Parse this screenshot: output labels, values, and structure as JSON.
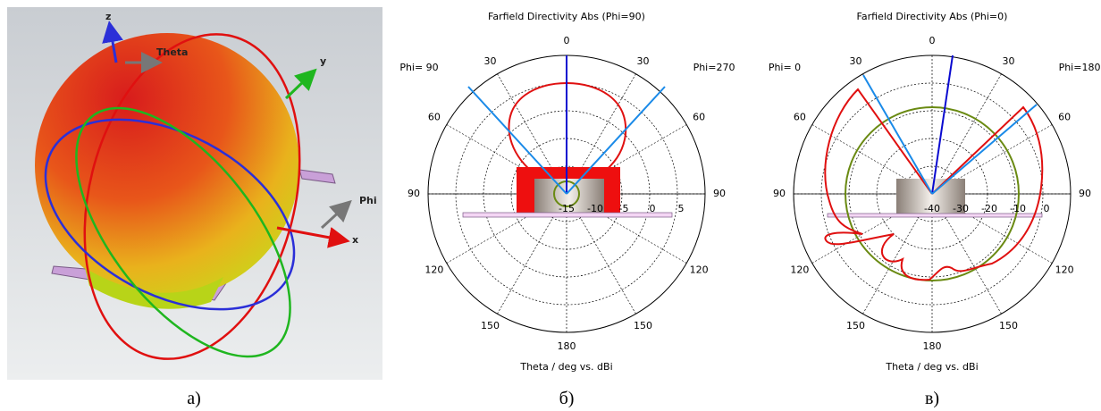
{
  "panels": [
    {
      "label": "а)",
      "axis_names": [
        "z",
        "Theta",
        "y",
        "Phi",
        "x"
      ]
    },
    {
      "title": "Farfield Directivity Abs (Phi=90)",
      "phi_left": "Phi= 90",
      "phi_right": "Phi=270",
      "angle_labels": [
        "0",
        "30",
        "30",
        "60",
        "60",
        "90",
        "90",
        "120",
        "120",
        "150",
        "150",
        "180"
      ],
      "radial_labels": [
        "-15",
        "-10",
        "-5",
        "0",
        "5"
      ],
      "axis_label": "Theta / deg vs. dBi",
      "label": "б)"
    },
    {
      "title": "Farfield Directivity Abs (Phi=0)",
      "phi_left": "Phi=  0",
      "phi_right": "Phi=180",
      "angle_labels": [
        "0",
        "30",
        "30",
        "60",
        "60",
        "90",
        "90",
        "120",
        "120",
        "150",
        "150",
        "180"
      ],
      "radial_labels": [
        "-40",
        "-30",
        "-20",
        "-10",
        "0"
      ],
      "axis_label": "Theta / deg vs. dBi",
      "label": "в)"
    }
  ]
}
